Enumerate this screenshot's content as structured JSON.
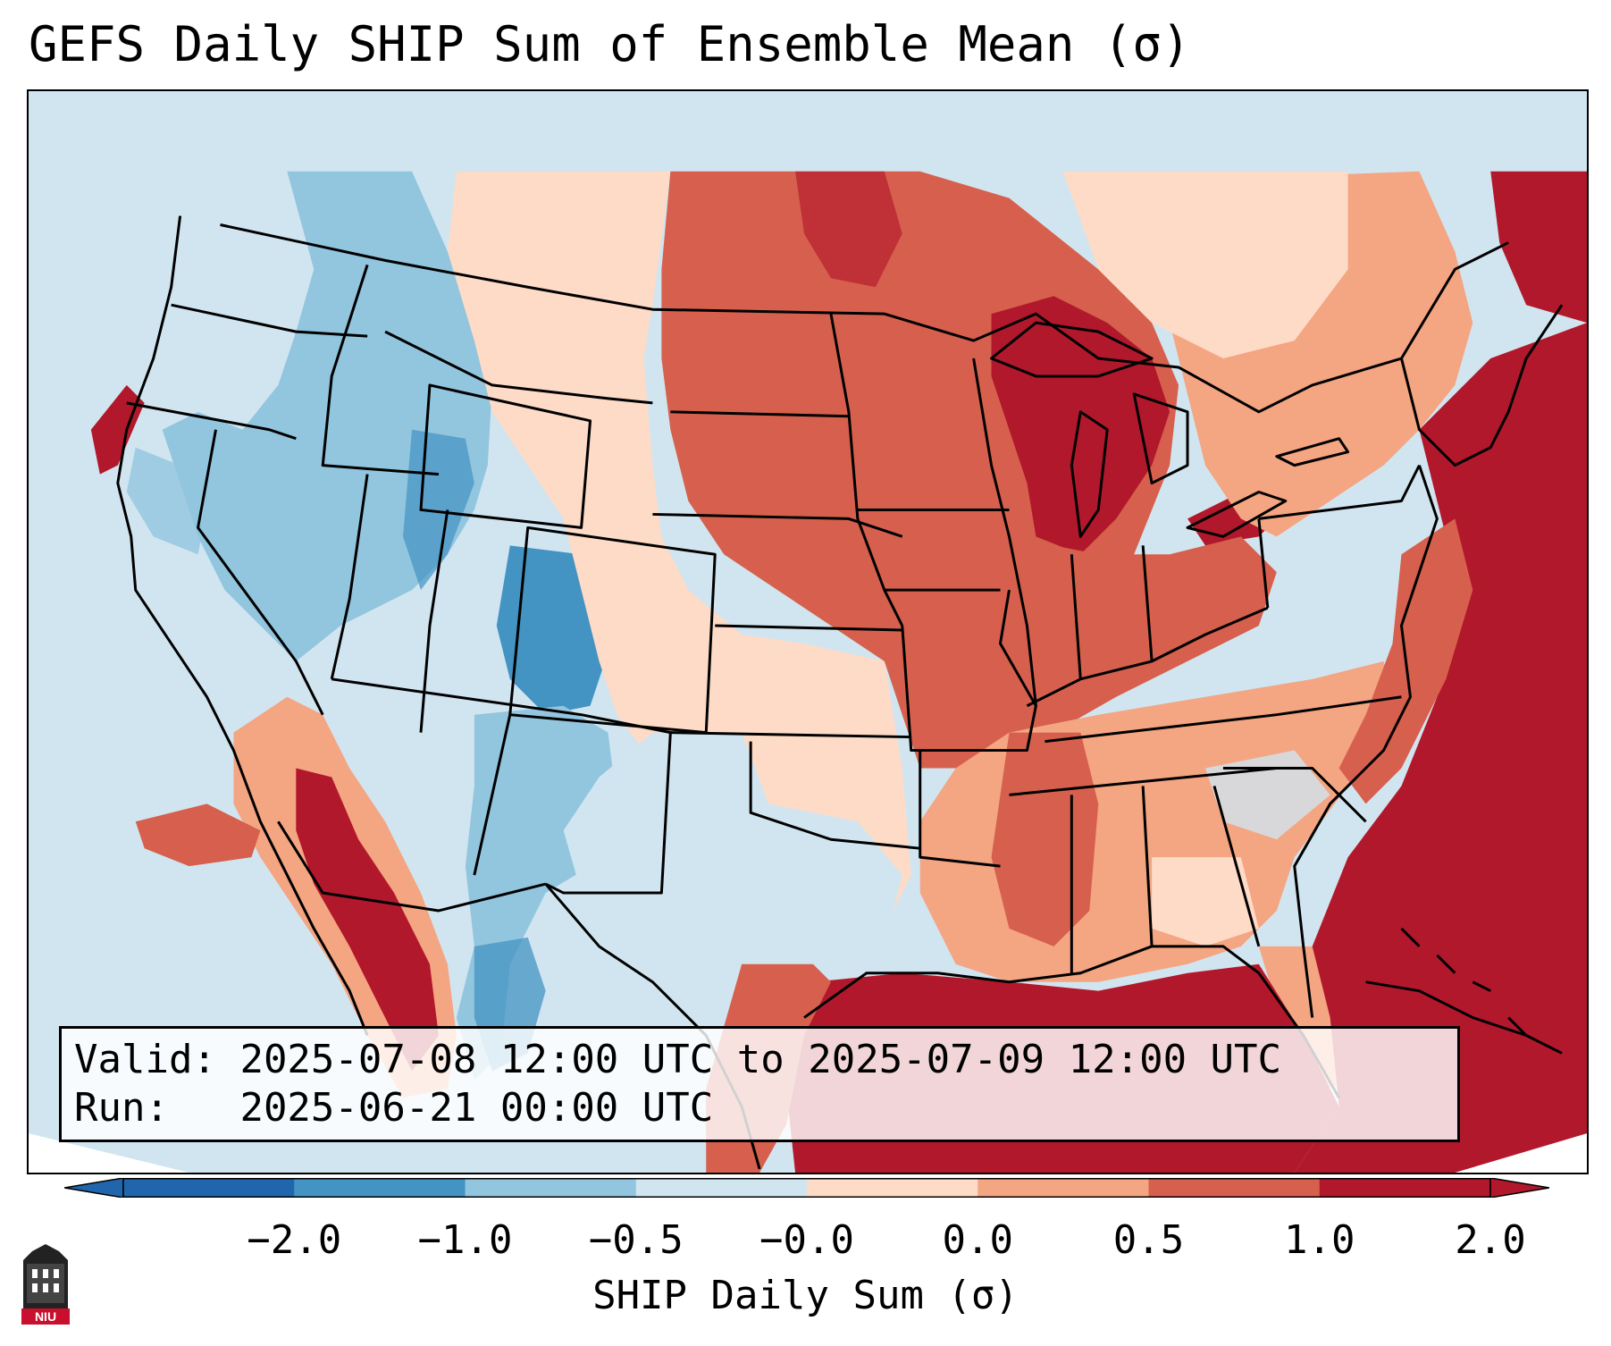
{
  "title": "GEFS Daily SHIP Sum of Ensemble Mean (σ)",
  "info": {
    "valid_label": "Valid:",
    "valid_value": "2025-07-08 12:00 UTC to 2025-07-09 12:00 UTC",
    "run_label": "Run:",
    "run_value": "2025-06-21 00:00 UTC"
  },
  "colorbar": {
    "label": "SHIP Daily Sum (σ)",
    "ticks": [
      "−2.0",
      "−1.0",
      "−0.5",
      "−0.0",
      "0.0",
      "0.5",
      "1.0",
      "2.0"
    ],
    "colors": [
      "#2166ac",
      "#4393c3",
      "#92c5de",
      "#d1e5f0",
      "#fddbc7",
      "#f4a582",
      "#d6604d",
      "#b2182b"
    ],
    "extend": "both"
  },
  "map": {
    "region": "Contiguous United States",
    "background_color": "#d1e5f0",
    "anomaly_regions": [
      {
        "name": "Pacific Northwest",
        "category": "#92c5de"
      },
      {
        "name": "Northern Rockies",
        "category": "#92c5de"
      },
      {
        "name": "Colorado",
        "category": "#4393c3"
      },
      {
        "name": "Great Basin",
        "category": "#92c5de"
      },
      {
        "name": "Texas",
        "category": "#d1e5f0"
      },
      {
        "name": "Northern Plains",
        "category": "#d6604d"
      },
      {
        "name": "Upper Midwest / Great Lakes",
        "category": "#b2182b"
      },
      {
        "name": "Ohio Valley",
        "category": "#d6604d"
      },
      {
        "name": "Southeast",
        "category": "#f4a582"
      },
      {
        "name": "Gulf of Mexico",
        "category": "#b2182b"
      },
      {
        "name": "Western Atlantic",
        "category": "#b2182b"
      },
      {
        "name": "Southern California / Baja",
        "category": "#b2182b"
      },
      {
        "name": "Central Plains",
        "category": "#fddbc7"
      }
    ]
  },
  "logo": {
    "text": "NIU",
    "color": "#c8102e"
  }
}
